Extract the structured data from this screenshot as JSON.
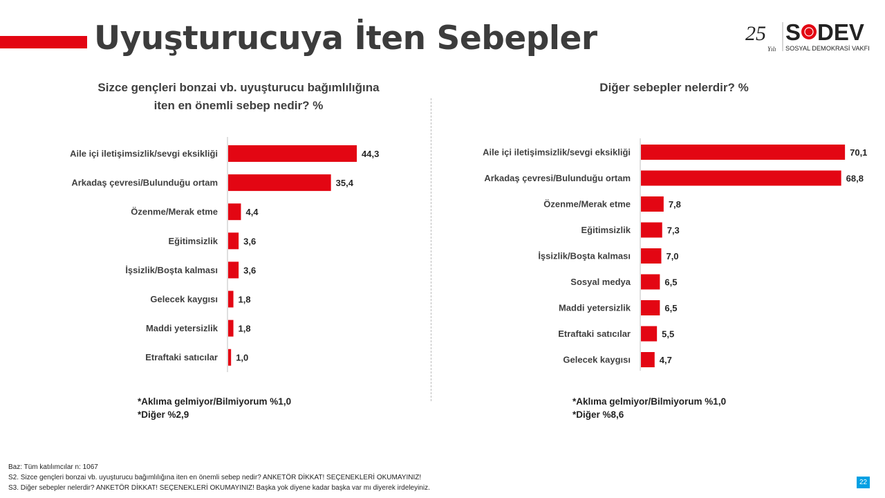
{
  "title": "Uyuşturucuya İten Sebepler",
  "logo": {
    "anniversary": "25",
    "anniversary_suffix": "Yılı",
    "brand": "SODEV",
    "subtitle": "SOSYAL DEMOKRASİ VAKFI",
    "brand_color": "#e30613"
  },
  "chart_data": [
    {
      "type": "bar",
      "orientation": "horizontal",
      "title_line1": "Sizce gençleri bonzai  vb. uyuşturucu  bağımlılığına",
      "title_line2": "iten en önemli sebep nedir? %",
      "categories": [
        "Aile içi iletişimsizlik/sevgi eksikliği",
        "Arkadaş çevresi/Bulunduğu ortam",
        "Özenme/Merak etme",
        "Eğitimsizlik",
        "İşsizlik/Boşta kalması",
        "Gelecek kaygısı",
        "Maddi yetersizlik",
        "Etraftaki satıcılar"
      ],
      "values": [
        44.3,
        35.4,
        4.4,
        3.6,
        3.6,
        1.8,
        1.8,
        1.0
      ],
      "labels": [
        "44,3",
        "35,4",
        "4,4",
        "3,6",
        "3,6",
        "1,8",
        "1,8",
        "1,0"
      ],
      "color": "#e30613"
    },
    {
      "type": "bar",
      "orientation": "horizontal",
      "title_line1": "Diğer sebepler nelerdir? %",
      "title_line2": "",
      "categories": [
        "Aile içi iletişimsizlik/sevgi eksikliği",
        "Arkadaş çevresi/Bulunduğu ortam",
        "Özenme/Merak etme",
        "Eğitimsizlik",
        "İşsizlik/Boşta kalması",
        "Sosyal medya",
        "Maddi yetersizlik",
        "Etraftaki satıcılar",
        "Gelecek kaygısı"
      ],
      "values": [
        70.1,
        68.8,
        7.8,
        7.3,
        7.0,
        6.5,
        6.5,
        5.5,
        4.7
      ],
      "labels": [
        "70,1",
        "68,8",
        "7,8",
        "7,3",
        "7,0",
        "6,5",
        "6,5",
        "5,5",
        "4,7"
      ],
      "color": "#e30613"
    }
  ],
  "notes": {
    "left1": "*Aklıma gelmiyor/Bilmiyorum %1,0",
    "left2": "*Diğer %2,9",
    "right1": "*Aklıma gelmiyor/Bilmiyorum %1,0",
    "right2": "*Diğer %8,6"
  },
  "footer": {
    "base": "Baz: Tüm katılımcılar n: 1067",
    "s2": "S2. Sizce gençleri bonzai  vb. uyuşturucu  bağımlılığına iten en önemli sebep nedir?  ANKETÖR DİKKAT! SEÇENEKLERİ OKUMAYINIZ!",
    "s3": "S3. Diğer sebepler nelerdir?  ANKETÖR DİKKAT! SEÇENEKLERİ OKUMAYINIZ! Başka yok diyene kadar başka var mı diyerek irdeleyiniz."
  },
  "page_number": "22"
}
